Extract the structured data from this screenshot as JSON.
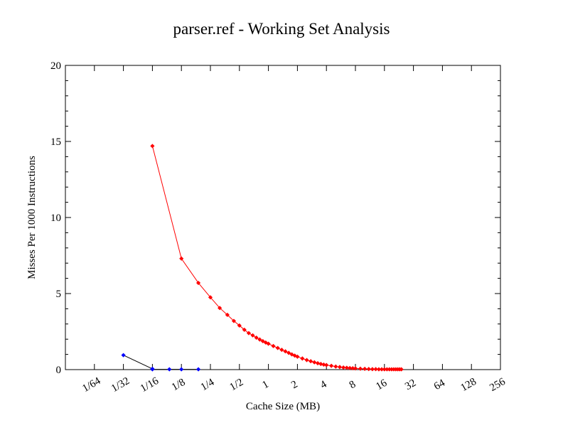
{
  "chart_data": {
    "type": "line",
    "title": "parser.ref - Working Set Analysis",
    "xlabel": "Cache Size (MB)",
    "ylabel": "Misses Per 1000 Instructions",
    "x_scale": "log2",
    "xlim": [
      0.0078125,
      256
    ],
    "ylim": [
      0,
      20
    ],
    "x_ticks": [
      {
        "value": 0.015625,
        "label": "1/64"
      },
      {
        "value": 0.03125,
        "label": "1/32"
      },
      {
        "value": 0.0625,
        "label": "1/16"
      },
      {
        "value": 0.125,
        "label": "1/8"
      },
      {
        "value": 0.25,
        "label": "1/4"
      },
      {
        "value": 0.5,
        "label": "1/2"
      },
      {
        "value": 1,
        "label": "1"
      },
      {
        "value": 2,
        "label": "2"
      },
      {
        "value": 4,
        "label": "4"
      },
      {
        "value": 8,
        "label": "8"
      },
      {
        "value": 16,
        "label": "16"
      },
      {
        "value": 32,
        "label": "32"
      },
      {
        "value": 64,
        "label": "64"
      },
      {
        "value": 128,
        "label": "128"
      },
      {
        "value": 256,
        "label": "256"
      }
    ],
    "y_ticks": [
      {
        "value": 0,
        "label": "0"
      },
      {
        "value": 5,
        "label": "5"
      },
      {
        "value": 10,
        "label": "10"
      },
      {
        "value": 15,
        "label": "15"
      },
      {
        "value": 20,
        "label": "20"
      }
    ],
    "grid": false,
    "series": [
      {
        "color": "#0000ff",
        "line_color": "#000000",
        "points": [
          [
            0.03125,
            0.95
          ],
          [
            0.0625,
            0.05
          ],
          [
            0.0625,
            0.03
          ],
          [
            0.0625,
            0.02
          ],
          [
            0.09375,
            0.02
          ],
          [
            0.125,
            0.02
          ],
          [
            0.1875,
            0.02
          ]
        ]
      },
      {
        "color": "#ff0000",
        "line_color": "#ff0000",
        "points": [
          [
            0.0625,
            14.7
          ],
          [
            0.125,
            7.3
          ],
          [
            0.1875,
            5.7
          ],
          [
            0.25,
            4.75
          ],
          [
            0.3125,
            4.05
          ],
          [
            0.375,
            3.6
          ],
          [
            0.4375,
            3.2
          ],
          [
            0.5,
            2.9
          ],
          [
            0.5625,
            2.62
          ],
          [
            0.625,
            2.4
          ],
          [
            0.6875,
            2.25
          ],
          [
            0.75,
            2.1
          ],
          [
            0.8125,
            1.98
          ],
          [
            0.875,
            1.87
          ],
          [
            0.9375,
            1.78
          ],
          [
            1.0,
            1.7
          ],
          [
            1.125,
            1.55
          ],
          [
            1.25,
            1.42
          ],
          [
            1.375,
            1.3
          ],
          [
            1.5,
            1.2
          ],
          [
            1.625,
            1.1
          ],
          [
            1.75,
            1.0
          ],
          [
            1.875,
            0.92
          ],
          [
            2.0,
            0.85
          ],
          [
            2.25,
            0.73
          ],
          [
            2.5,
            0.63
          ],
          [
            2.75,
            0.55
          ],
          [
            3.0,
            0.48
          ],
          [
            3.25,
            0.42
          ],
          [
            3.5,
            0.37
          ],
          [
            3.75,
            0.33
          ],
          [
            4.0,
            0.3
          ],
          [
            4.5,
            0.25
          ],
          [
            5.0,
            0.2
          ],
          [
            5.5,
            0.17
          ],
          [
            6.0,
            0.14
          ],
          [
            6.5,
            0.12
          ],
          [
            7.0,
            0.1
          ],
          [
            7.5,
            0.09
          ],
          [
            8.0,
            0.08
          ],
          [
            9.0,
            0.06
          ],
          [
            10.0,
            0.05
          ],
          [
            11.0,
            0.04
          ],
          [
            12.0,
            0.03
          ],
          [
            13.0,
            0.03
          ],
          [
            14.0,
            0.02
          ],
          [
            15.0,
            0.02
          ],
          [
            16.0,
            0.02
          ],
          [
            17.0,
            0.02
          ],
          [
            18.0,
            0.02
          ],
          [
            19.0,
            0.02
          ],
          [
            20.0,
            0.02
          ],
          [
            21.0,
            0.02
          ],
          [
            22.0,
            0.02
          ],
          [
            23.0,
            0.02
          ],
          [
            24.0,
            0.02
          ]
        ]
      }
    ]
  }
}
